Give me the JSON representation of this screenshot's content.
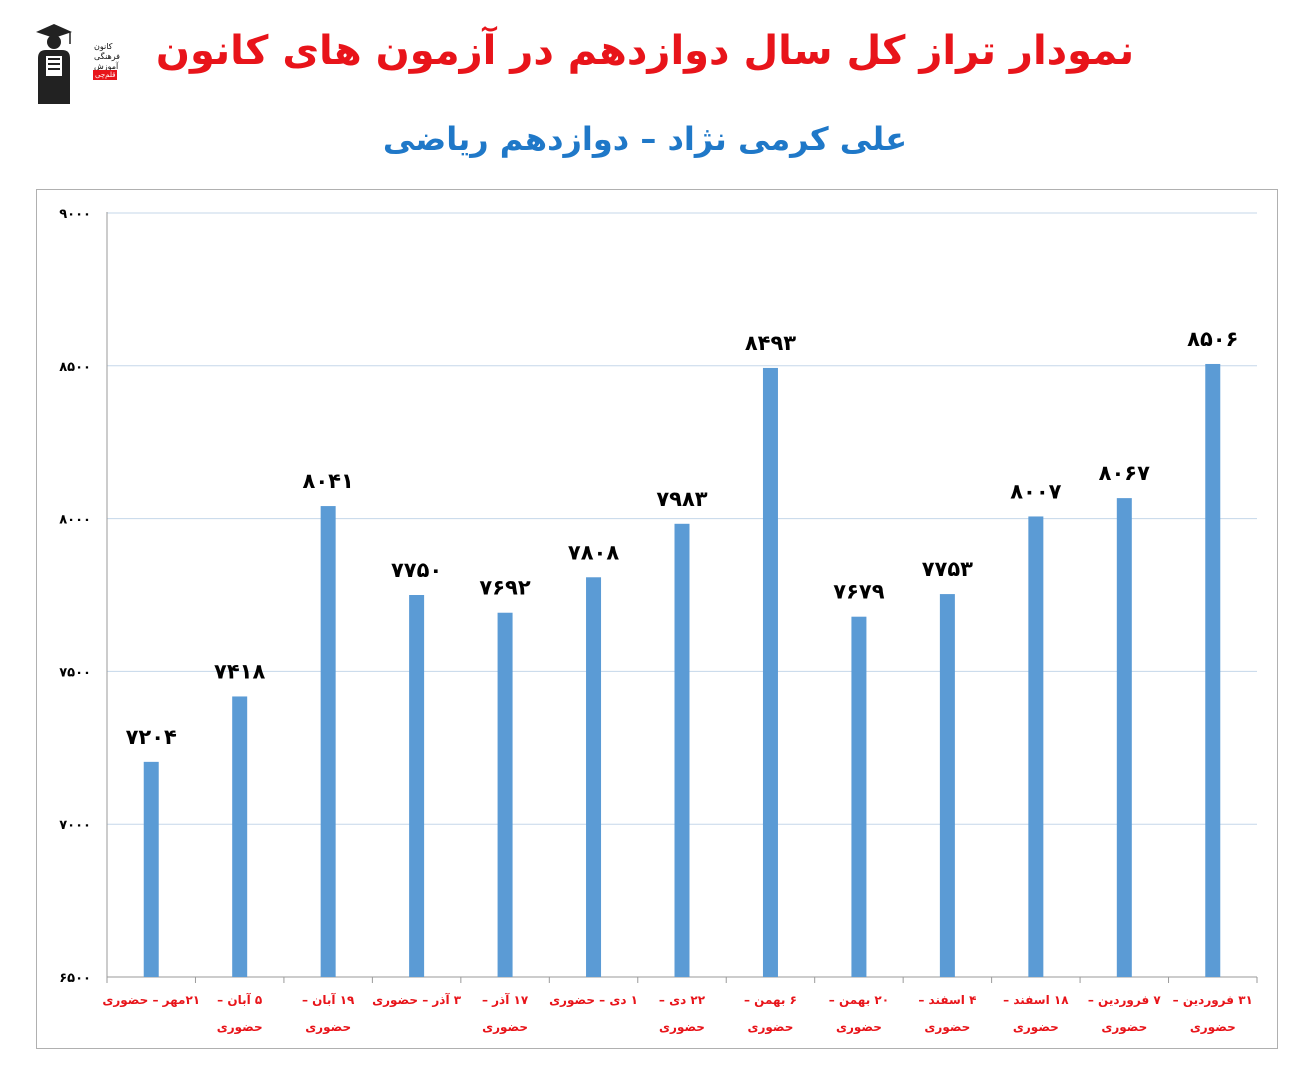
{
  "header": {
    "title": "نمودار تراز کل سال دوازدهم در آزمون های کانون",
    "subtitle": "علی کرمی نژاد – دوازدهم ریاضی"
  },
  "logo": {
    "line1": "کانون",
    "line2": "فرهنگی",
    "line3": "آموزش",
    "badge": "قلم‌چی"
  },
  "colors": {
    "bar": "#5b9bd5",
    "title": "#e8141a",
    "subtitle": "#1f78c8",
    "category_label": "#e8141a",
    "value_label": "#000000",
    "gridline": "#c5d7ea"
  },
  "chart_data": {
    "type": "bar",
    "title": "",
    "xlabel": "",
    "ylabel": "",
    "ylim": [
      6500,
      9000
    ],
    "yticks": [
      6500,
      7000,
      7500,
      8000,
      8500,
      9000
    ],
    "ytick_labels": [
      "۶۵۰۰",
      "۷۰۰۰",
      "۷۵۰۰",
      "۸۰۰۰",
      "۸۵۰۰",
      "۹۰۰۰"
    ],
    "grid": true,
    "categories": [
      [
        "۲۱مهر – حضوری"
      ],
      [
        "۵ آبان –",
        "حضوری"
      ],
      [
        "۱۹ آبان –",
        "حضوری"
      ],
      [
        "۳ آذر – حضوری"
      ],
      [
        "۱۷ آذر –",
        "حضوری"
      ],
      [
        "۱ دی – حضوری"
      ],
      [
        "۲۲ دی –",
        "حضوری"
      ],
      [
        "۶ بهمن –",
        "حضوری"
      ],
      [
        "۲۰ بهمن –",
        "حضوری"
      ],
      [
        "۴ اسفند –",
        "حضوری"
      ],
      [
        "۱۸ اسفند –",
        "حضوری"
      ],
      [
        "۷ فروردین –",
        "حضوری"
      ],
      [
        "۳۱ فروردین –",
        "حضوری"
      ]
    ],
    "values": [
      7204,
      7418,
      8041,
      7750,
      7692,
      7808,
      7983,
      8493,
      7679,
      7753,
      8007,
      8067,
      8506
    ],
    "value_labels": [
      "۷۲۰۴",
      "۷۴۱۸",
      "۸۰۴۱",
      "۷۷۵۰",
      "۷۶۹۲",
      "۷۸۰۸",
      "۷۹۸۳",
      "۸۴۹۳",
      "۷۶۷۹",
      "۷۷۵۳",
      "۸۰۰۷",
      "۸۰۶۷",
      "۸۵۰۶"
    ]
  }
}
